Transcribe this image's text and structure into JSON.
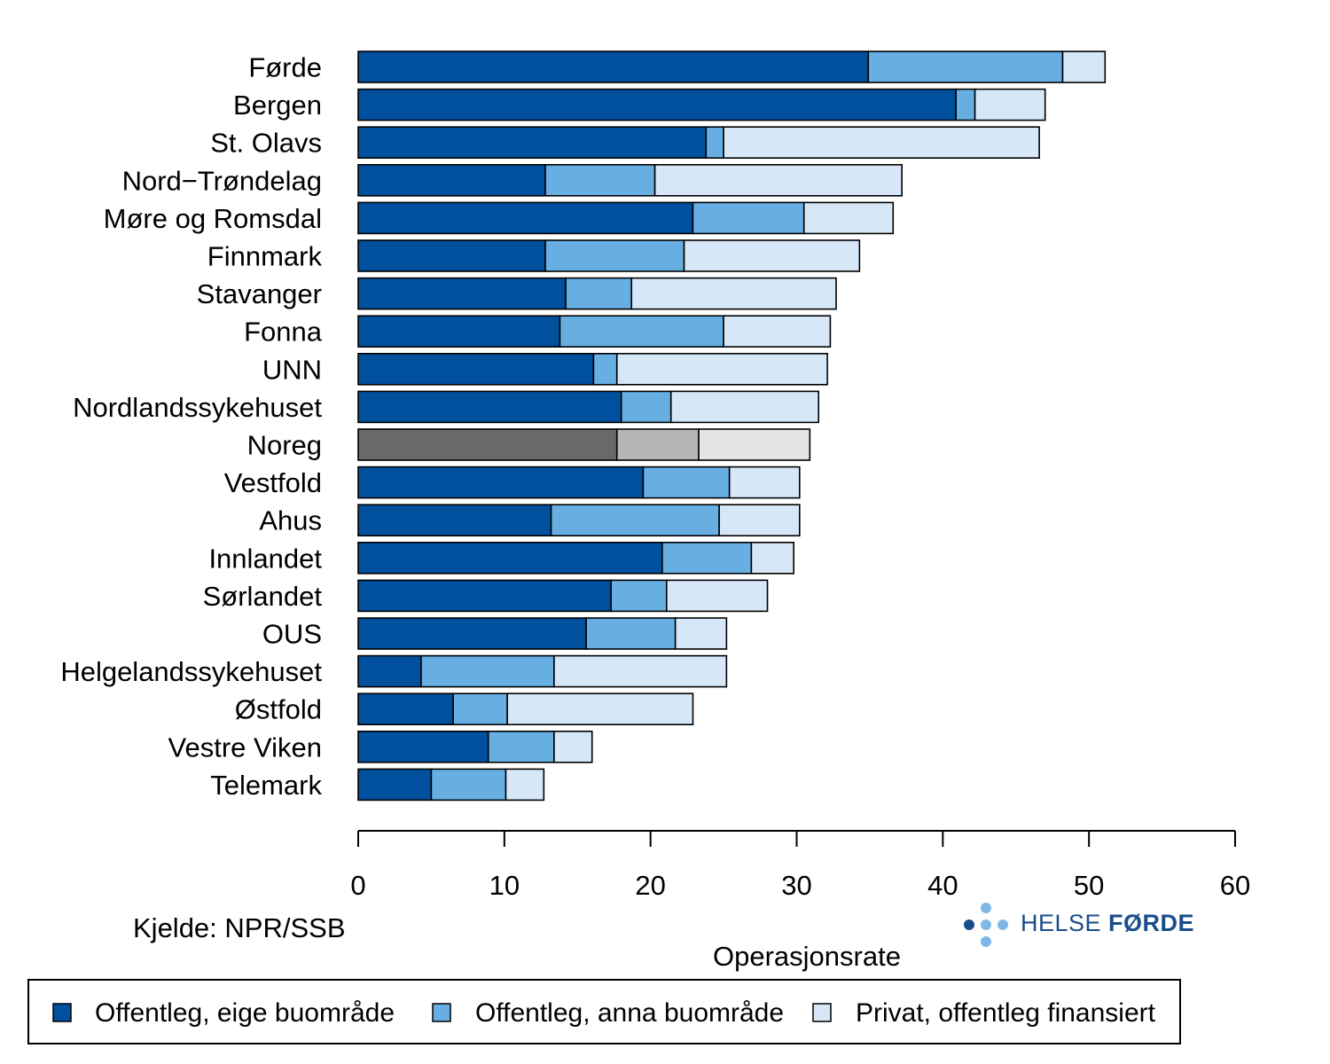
{
  "chart_data": {
    "type": "bar",
    "orientation": "horizontal",
    "stacked": true,
    "categories": [
      "Førde",
      "Bergen",
      "St. Olavs",
      "Nord−Trøndelag",
      "Møre og Romsdal",
      "Finnmark",
      "Stavanger",
      "Fonna",
      "UNN",
      "Nordlandssykehuset",
      "Noreg",
      "Vestfold",
      "Ahus",
      "Innlandet",
      "Sørlandet",
      "OUS",
      "Helgelandssykehuset",
      "Østfold",
      "Vestre Viken",
      "Telemark"
    ],
    "highlight_category": "Noreg",
    "series": [
      {
        "name": "Offentleg, eige buområde",
        "color": "#00509e",
        "highlight_color": "#696969",
        "values": [
          34.9,
          40.9,
          23.8,
          12.8,
          22.9,
          12.8,
          14.2,
          13.8,
          16.1,
          18.0,
          17.7,
          19.5,
          13.2,
          20.8,
          17.3,
          15.6,
          4.3,
          6.5,
          8.9,
          5.0
        ]
      },
      {
        "name": "Offentleg, anna buområde",
        "color": "#67aee3",
        "highlight_color": "#b5b5b5",
        "values": [
          13.3,
          1.3,
          1.2,
          7.5,
          7.6,
          9.5,
          4.5,
          11.2,
          1.6,
          3.4,
          5.6,
          5.9,
          11.5,
          6.1,
          3.8,
          6.1,
          9.1,
          3.7,
          4.5,
          5.1
        ]
      },
      {
        "name": "Privat, offentleg finansiert",
        "color": "#d6e8f7",
        "highlight_color": "#e5e5e5",
        "values": [
          2.9,
          4.8,
          21.6,
          16.9,
          6.1,
          12.0,
          14.0,
          7.3,
          14.4,
          10.1,
          7.6,
          4.8,
          5.5,
          2.9,
          6.9,
          3.5,
          11.8,
          12.7,
          2.6,
          2.6
        ]
      }
    ],
    "xlim": [
      0,
      60
    ],
    "xticks": [
      0,
      10,
      20,
      30,
      40,
      50,
      60
    ],
    "xlabel": "Operasjonsrate",
    "ylabel": "",
    "legend_position": "bottom"
  },
  "source_note": "Kjelde: NPR/SSB",
  "logo": {
    "text_regular": "HELSE ",
    "text_bold": "FØRDE",
    "dark": "#1a4e8a",
    "light": "#7fb8e6"
  }
}
